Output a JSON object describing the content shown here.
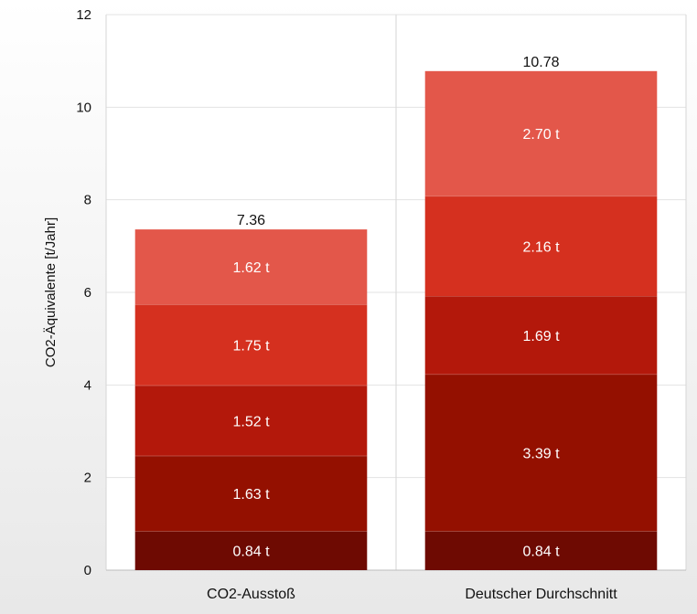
{
  "chart_data": {
    "type": "bar",
    "stacked": true,
    "categories": [
      "CO2-Ausstoß",
      "Deutscher Durchschnitt"
    ],
    "series": [
      {
        "values": [
          0.84,
          0.84
        ],
        "labels": [
          "0.84 t",
          "0.84 t"
        ],
        "color": "#6e0a02"
      },
      {
        "values": [
          1.63,
          3.39
        ],
        "labels": [
          "1.63 t",
          "3.39 t"
        ],
        "color": "#941000"
      },
      {
        "values": [
          1.52,
          1.69
        ],
        "labels": [
          "1.52 t",
          "1.69 t"
        ],
        "color": "#b3180b"
      },
      {
        "values": [
          1.75,
          2.16
        ],
        "labels": [
          "1.75 t",
          "2.16 t"
        ],
        "color": "#d5301f"
      },
      {
        "values": [
          1.62,
          2.7
        ],
        "labels": [
          "1.62 t",
          "2.70 t"
        ],
        "color": "#e3574a"
      }
    ],
    "totals": [
      "7.36",
      "10.78"
    ],
    "ylabel": "CO2-Äquivalente [t/Jahr]",
    "ylim": [
      0,
      12
    ],
    "yticks": [
      "0",
      "2",
      "4",
      "6",
      "8",
      "10",
      "12"
    ],
    "grid": true
  }
}
